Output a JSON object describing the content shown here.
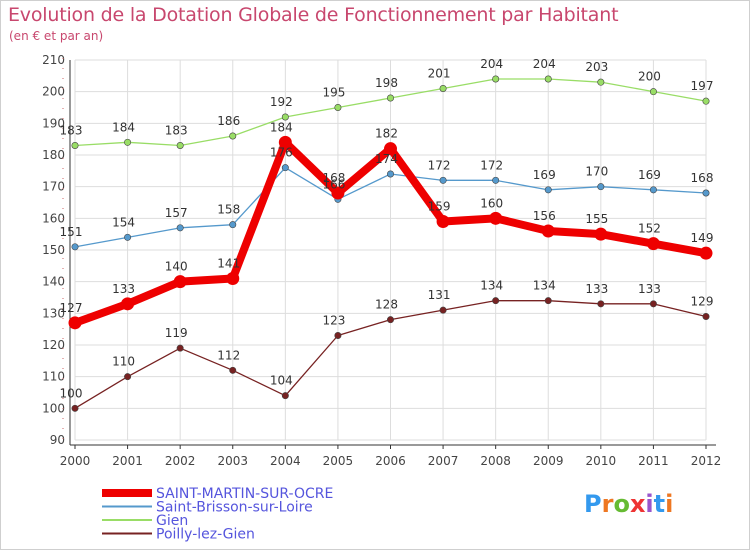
{
  "chart_data": {
    "type": "line",
    "title": "Evolution de la Dotation Globale de Fonctionnement par Habitant",
    "subtitle": "(en € et par an)",
    "xlabel": "",
    "ylabel": "",
    "ylim": [
      90,
      210
    ],
    "yticks": [
      90,
      100,
      110,
      120,
      130,
      140,
      150,
      160,
      170,
      180,
      190,
      200,
      210
    ],
    "x": [
      "2000",
      "2001",
      "2002",
      "2003",
      "2004",
      "2005",
      "2006",
      "2007",
      "2008",
      "2009",
      "2010",
      "2011",
      "2012"
    ],
    "grid": true,
    "legend_position": "bottom-left",
    "series": [
      {
        "name": "Gien",
        "color": "#99dd66",
        "values": [
          183,
          184,
          183,
          186,
          192,
          195,
          198,
          201,
          204,
          204,
          203,
          200,
          197
        ]
      },
      {
        "name": "Saint-Brisson-sur-Loire",
        "color": "#5599cc",
        "values": [
          151,
          154,
          157,
          158,
          176,
          166,
          174,
          172,
          172,
          169,
          170,
          169,
          168
        ]
      },
      {
        "name": "Poilly-lez-Gien",
        "color": "#772222",
        "values": [
          100,
          110,
          119,
          112,
          104,
          123,
          128,
          131,
          134,
          134,
          133,
          133,
          129
        ]
      },
      {
        "name": "SAINT-MARTIN-SUR-OCRE",
        "color": "#ee0000",
        "values": [
          127,
          133,
          140,
          141,
          184,
          168,
          182,
          159,
          160,
          156,
          155,
          152,
          149
        ]
      }
    ],
    "legend_order": [
      "SAINT-MARTIN-SUR-OCRE",
      "Saint-Brisson-sur-Loire",
      "Gien",
      "Poilly-lez-Gien"
    ]
  },
  "logo": {
    "text": "Proxiti",
    "letters": [
      "P",
      "r",
      "o",
      "x",
      "i",
      "t",
      "i"
    ],
    "colors": [
      "#3399ee",
      "#ee7722",
      "#66bb33",
      "#ee3333",
      "#9955cc",
      "#3399ee",
      "#ee7722"
    ]
  }
}
